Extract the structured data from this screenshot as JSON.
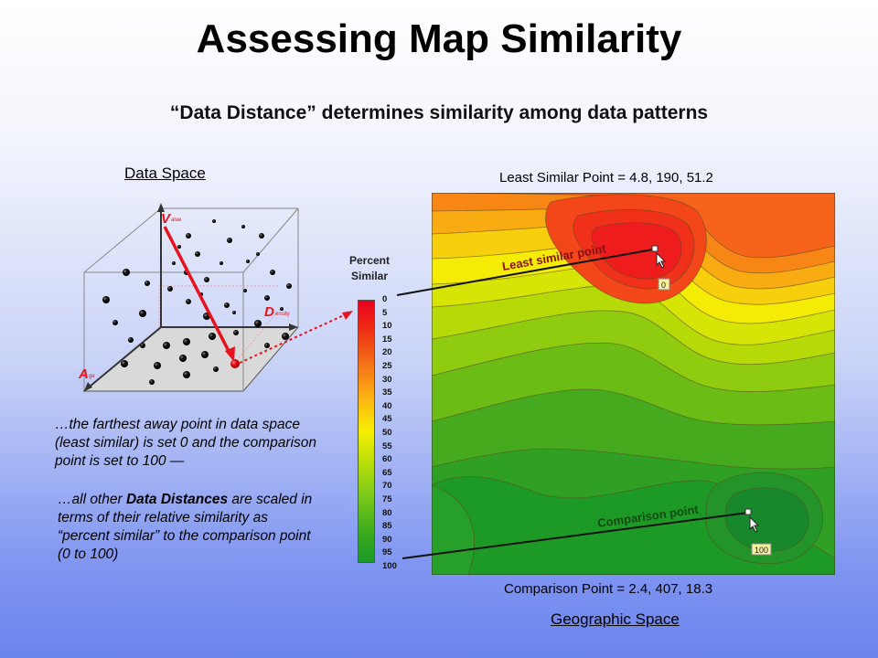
{
  "title": "Assessing Map Similarity",
  "subtitle": "“Data Distance” determines similarity among data patterns",
  "data_space": {
    "label": "Data Space",
    "axis_value": "Value",
    "axis_density": "Density",
    "axis_age": "Age"
  },
  "least_similar_point": "Least Similar Point = 4.8, 190, 51.2",
  "comparison_point": "Comparison Point = 2.4, 407, 18.3",
  "geographic_space": "Geographic Space",
  "legend": {
    "title_line1": "Percent",
    "title_line2": "Similar",
    "ticks": [
      "0",
      "5",
      "10",
      "15",
      "20",
      "25",
      "30",
      "35",
      "40",
      "45",
      "50",
      "55",
      "60",
      "65",
      "70",
      "75",
      "80",
      "85",
      "90",
      "95",
      "100"
    ]
  },
  "map": {
    "least_similar_label": "Least similar point",
    "least_similar_badge": "0",
    "comparison_label": "Comparison point",
    "comparison_badge": "100"
  },
  "description1": "…the farthest away point in data space (least similar) is set 0 and the comparison point is set to 100 —",
  "description2": {
    "prefix": "…all other ",
    "bold": "Data Distances",
    "suffix": " are scaled in terms of their relative similarity as “percent similar” to the comparison point (0 to 100)"
  },
  "colors": {
    "arrow_red": "#e8121c",
    "map_red": "#ee1a1a",
    "map_green": "#18902a"
  }
}
